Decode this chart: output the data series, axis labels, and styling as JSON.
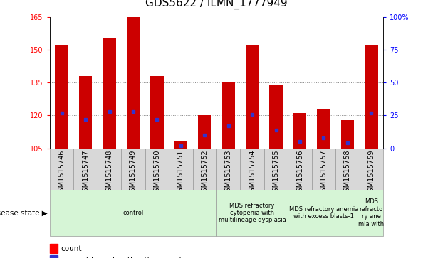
{
  "title": "GDS5622 / ILMN_1777949",
  "samples": [
    "GSM1515746",
    "GSM1515747",
    "GSM1515748",
    "GSM1515749",
    "GSM1515750",
    "GSM1515751",
    "GSM1515752",
    "GSM1515753",
    "GSM1515754",
    "GSM1515755",
    "GSM1515756",
    "GSM1515757",
    "GSM1515758",
    "GSM1515759"
  ],
  "counts": [
    152,
    138,
    155,
    165,
    138,
    108,
    120,
    135,
    152,
    134,
    121,
    123,
    118,
    152
  ],
  "base": 105,
  "percentile_ranks": [
    27,
    22,
    28,
    28,
    22,
    2,
    10,
    17,
    26,
    14,
    5,
    8,
    4,
    27
  ],
  "ylim_left": [
    105,
    165
  ],
  "ylim_right": [
    0,
    100
  ],
  "yticks_left": [
    105,
    120,
    135,
    150,
    165
  ],
  "yticks_right": [
    0,
    25,
    50,
    75,
    100
  ],
  "bar_color": "#cc0000",
  "pct_color": "#3333cc",
  "bar_width": 0.55,
  "disease_groups": [
    {
      "label": "control",
      "start": 0,
      "end": 7,
      "color": "#d6f5d6"
    },
    {
      "label": "MDS refractory\ncytopenia with\nmultilineage dysplasia",
      "start": 7,
      "end": 10,
      "color": "#d6f5d6"
    },
    {
      "label": "MDS refractory anemia\nwith excess blasts-1",
      "start": 10,
      "end": 13,
      "color": "#d6f5d6"
    },
    {
      "label": "MDS\nrefracto\nry ane\nmia with",
      "start": 13,
      "end": 14,
      "color": "#d6f5d6"
    }
  ],
  "sample_bg": "#d8d8d8",
  "grid_color": "#888888",
  "bg_color": "#ffffff",
  "title_fontsize": 11,
  "tick_fontsize": 7,
  "label_fontsize": 7.5
}
